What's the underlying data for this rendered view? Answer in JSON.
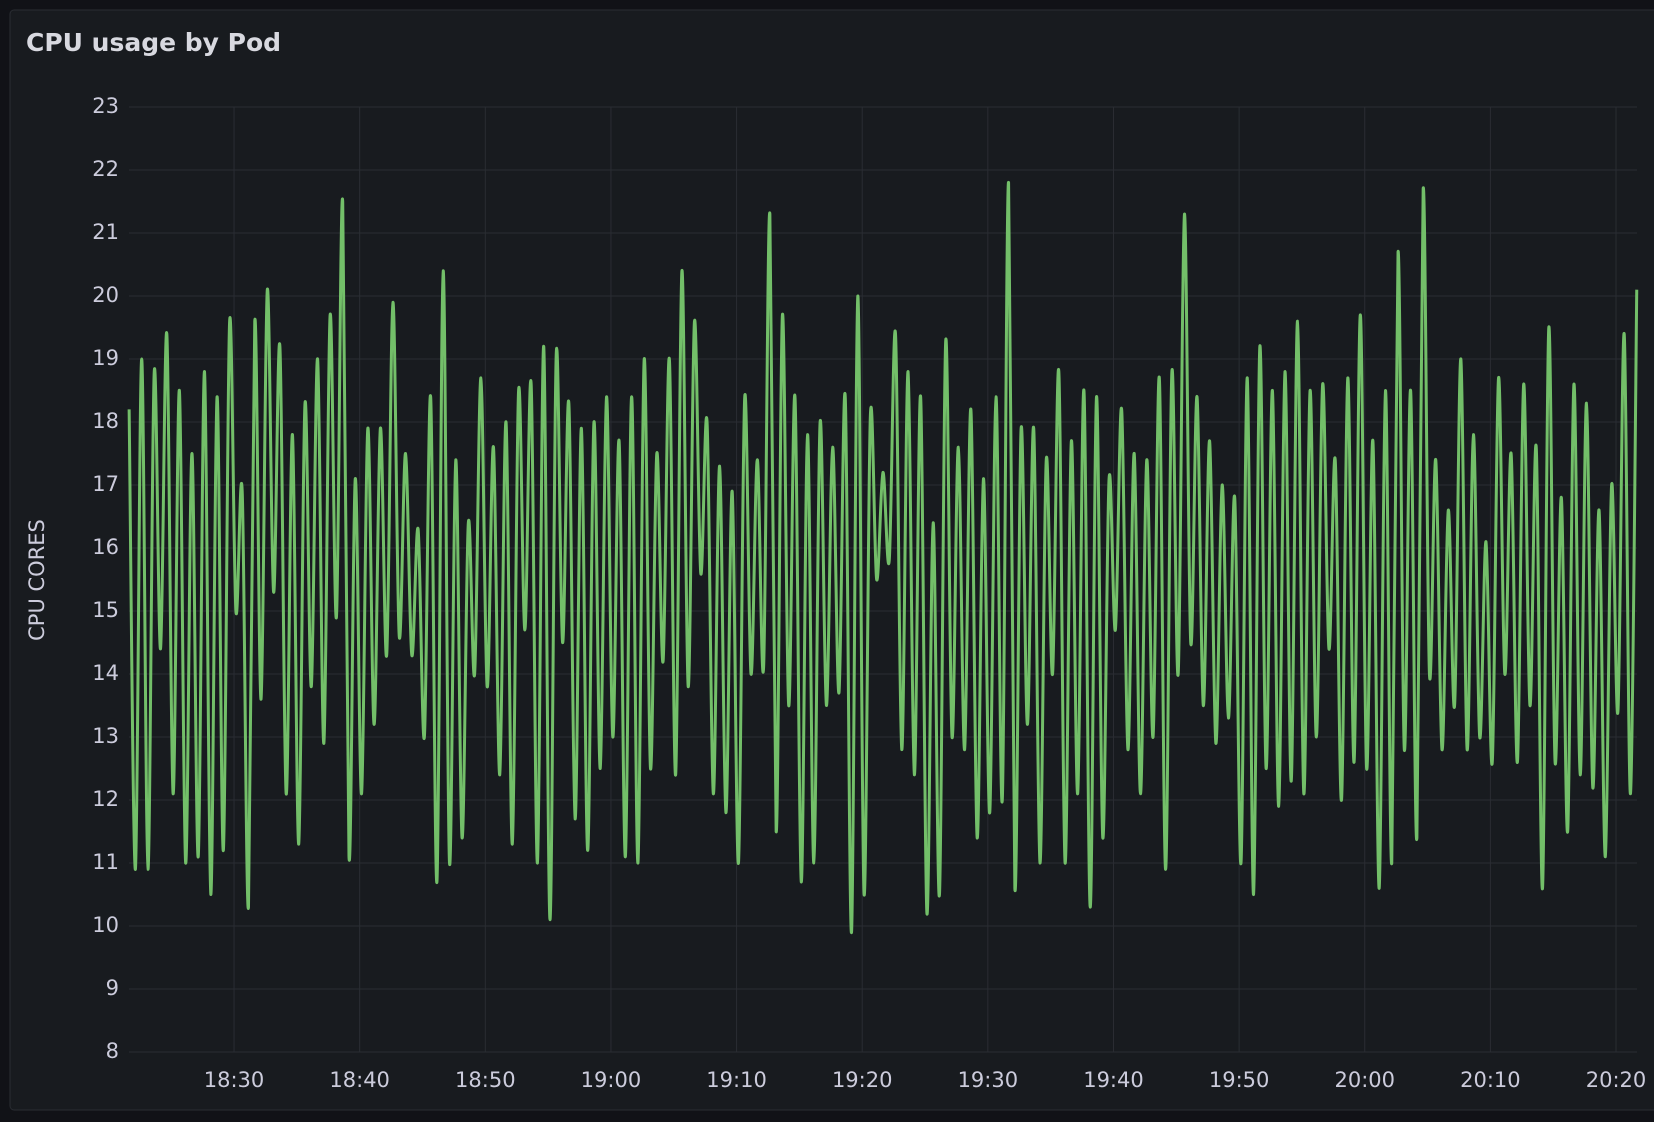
{
  "chart_data": {
    "type": "line",
    "title": "CPU usage by Pod",
    "y_label": "CPU CORES",
    "grid": true,
    "xlim": [
      1101.64,
      1221.67
    ],
    "xticks": [
      {
        "value": 1110,
        "label": "18:30"
      },
      {
        "value": 1120,
        "label": "18:40"
      },
      {
        "value": 1130,
        "label": "18:50"
      },
      {
        "value": 1140,
        "label": "19:00"
      },
      {
        "value": 1150,
        "label": "19:10"
      },
      {
        "value": 1160,
        "label": "19:20"
      },
      {
        "value": 1170,
        "label": "19:30"
      },
      {
        "value": 1180,
        "label": "19:40"
      },
      {
        "value": 1190,
        "label": "19:50"
      },
      {
        "value": 1200,
        "label": "20:00"
      },
      {
        "value": 1210,
        "label": "20:10"
      },
      {
        "value": 1220,
        "label": "20:20"
      }
    ],
    "ylim": [
      8,
      23
    ],
    "yticks": [
      8,
      9,
      10,
      11,
      12,
      13,
      14,
      15,
      16,
      17,
      18,
      19,
      20,
      21,
      22,
      23
    ],
    "x": [
      1101.65,
      1102.15,
      1102.65,
      1103.15,
      1103.65,
      1104.15,
      1104.65,
      1105.15,
      1105.65,
      1106.15,
      1106.65,
      1107.15,
      1107.65,
      1108.15,
      1108.65,
      1109.15,
      1109.65,
      1110.15,
      1110.65,
      1111.15,
      1111.65,
      1112.15,
      1112.65,
      1113.15,
      1113.65,
      1114.15,
      1114.65,
      1115.15,
      1115.65,
      1116.15,
      1116.65,
      1117.15,
      1117.65,
      1118.15,
      1118.65,
      1119.15,
      1119.65,
      1120.15,
      1120.65,
      1121.15,
      1121.65,
      1122.15,
      1122.65,
      1123.15,
      1123.65,
      1124.15,
      1124.65,
      1125.15,
      1125.65,
      1126.15,
      1126.65,
      1127.15,
      1127.65,
      1128.15,
      1128.65,
      1129.15,
      1129.65,
      1130.15,
      1130.65,
      1131.15,
      1131.65,
      1132.15,
      1132.65,
      1133.15,
      1133.65,
      1134.15,
      1134.65,
      1135.15,
      1135.65,
      1136.15,
      1136.65,
      1137.15,
      1137.65,
      1138.15,
      1138.65,
      1139.15,
      1139.65,
      1140.15,
      1140.65,
      1141.15,
      1141.65,
      1142.15,
      1142.65,
      1143.15,
      1143.65,
      1144.15,
      1144.65,
      1145.15,
      1145.65,
      1146.15,
      1146.65,
      1147.15,
      1147.65,
      1148.15,
      1148.65,
      1149.15,
      1149.65,
      1150.15,
      1150.65,
      1151.15,
      1151.65,
      1152.15,
      1152.65,
      1153.15,
      1153.65,
      1154.15,
      1154.65,
      1155.15,
      1155.65,
      1156.15,
      1156.65,
      1157.15,
      1157.65,
      1158.15,
      1158.65,
      1159.15,
      1159.65,
      1160.15,
      1160.65,
      1161.15,
      1161.65,
      1162.15,
      1162.65,
      1163.15,
      1163.65,
      1164.15,
      1164.65,
      1165.15,
      1165.65,
      1166.15,
      1166.65,
      1167.15,
      1167.65,
      1168.15,
      1168.65,
      1169.15,
      1169.65,
      1170.15,
      1170.65,
      1171.15,
      1171.65,
      1172.15,
      1172.65,
      1173.15,
      1173.65,
      1174.15,
      1174.65,
      1175.15,
      1175.65,
      1176.15,
      1176.65,
      1177.15,
      1177.65,
      1178.15,
      1178.65,
      1179.15,
      1179.65,
      1180.15,
      1180.65,
      1181.15,
      1181.65,
      1182.15,
      1182.65,
      1183.15,
      1183.65,
      1184.15,
      1184.65,
      1185.15,
      1185.65,
      1186.15,
      1186.65,
      1187.15,
      1187.65,
      1188.15,
      1188.65,
      1189.15,
      1189.65,
      1190.15,
      1190.65,
      1191.15,
      1191.65,
      1192.15,
      1192.65,
      1193.15,
      1193.65,
      1194.15,
      1194.65,
      1195.15,
      1195.65,
      1196.15,
      1196.65,
      1197.15,
      1197.65,
      1198.15,
      1198.65,
      1199.15,
      1199.65,
      1200.15,
      1200.65,
      1201.15,
      1201.65,
      1202.15,
      1202.65,
      1203.15,
      1203.65,
      1204.15,
      1204.65,
      1205.15,
      1205.65,
      1206.15,
      1206.65,
      1207.15,
      1207.65,
      1208.15,
      1208.65,
      1209.15,
      1209.65,
      1210.15,
      1210.65,
      1211.15,
      1211.65,
      1212.15,
      1212.65,
      1213.15,
      1213.65,
      1214.15,
      1214.65,
      1215.15,
      1215.65,
      1216.15,
      1216.65,
      1217.15,
      1217.65,
      1218.15,
      1218.65,
      1219.15,
      1219.65,
      1220.15,
      1220.65,
      1221.15,
      1221.65
    ],
    "series": [
      {
        "color": "#73bf69",
        "values": [
          18.2,
          10.9,
          19.0,
          10.9,
          18.8,
          14.4,
          19.4,
          12.1,
          18.5,
          11.0,
          17.5,
          11.1,
          18.8,
          10.5,
          18.4,
          11.2,
          19.6,
          15.0,
          16.9,
          10.3,
          19.6,
          13.6,
          20.1,
          15.3,
          19.2,
          12.1,
          17.8,
          11.3,
          18.3,
          13.8,
          19.0,
          12.9,
          19.7,
          14.9,
          21.5,
          11.1,
          17.1,
          12.1,
          17.9,
          13.2,
          17.9,
          14.3,
          19.9,
          14.6,
          17.5,
          14.3,
          16.3,
          13.0,
          18.4,
          10.7,
          20.4,
          11.0,
          17.4,
          11.4,
          16.4,
          14.0,
          18.7,
          13.8,
          17.6,
          12.4,
          18.0,
          11.3,
          18.5,
          14.7,
          18.6,
          11.0,
          19.2,
          10.1,
          19.1,
          14.5,
          18.3,
          11.7,
          17.9,
          11.2,
          18.0,
          12.5,
          18.4,
          13.0,
          17.7,
          11.1,
          18.4,
          11.0,
          19.0,
          12.5,
          17.5,
          14.2,
          19.0,
          12.4,
          20.4,
          13.8,
          19.6,
          15.6,
          18.0,
          12.1,
          17.3,
          11.8,
          16.9,
          11.0,
          18.4,
          14.0,
          17.4,
          14.1,
          21.3,
          11.5,
          19.7,
          13.5,
          18.4,
          10.7,
          17.8,
          11.0,
          18.0,
          13.5,
          17.6,
          13.7,
          18.4,
          9.9,
          20.0,
          10.5,
          18.1,
          15.5,
          17.2,
          15.8,
          19.4,
          12.8,
          18.8,
          12.4,
          18.4,
          10.2,
          16.4,
          10.5,
          19.3,
          13.0,
          17.6,
          12.8,
          18.2,
          11.4,
          17.1,
          11.8,
          18.4,
          12.0,
          21.8,
          10.6,
          17.9,
          13.2,
          17.9,
          11.0,
          17.4,
          14.0,
          18.8,
          11.0,
          17.7,
          12.1,
          18.5,
          10.3,
          18.4,
          11.4,
          17.1,
          14.7,
          18.2,
          12.8,
          17.5,
          12.1,
          17.4,
          13.0,
          18.7,
          10.9,
          18.8,
          14.0,
          21.3,
          14.5,
          18.4,
          13.5,
          17.7,
          12.9,
          17.0,
          13.3,
          16.8,
          11.0,
          18.7,
          10.5,
          19.2,
          12.5,
          18.5,
          11.9,
          18.8,
          12.3,
          19.6,
          12.1,
          18.5,
          13.0,
          18.6,
          14.4,
          17.4,
          12.0,
          18.7,
          12.6,
          19.7,
          12.5,
          17.7,
          10.6,
          18.5,
          11.0,
          20.7,
          12.8,
          18.5,
          11.4,
          21.7,
          14.0,
          17.4,
          12.8,
          16.6,
          13.5,
          19.0,
          12.8,
          17.8,
          13.0,
          16.1,
          12.6,
          18.7,
          14.0,
          17.5,
          12.6,
          18.6,
          13.5,
          17.6,
          10.6,
          19.5,
          12.6,
          16.8,
          11.5,
          18.6,
          12.4,
          18.3,
          12.2,
          16.6,
          11.1,
          17.0,
          13.4,
          19.4,
          12.1,
          20.1
        ]
      }
    ]
  }
}
